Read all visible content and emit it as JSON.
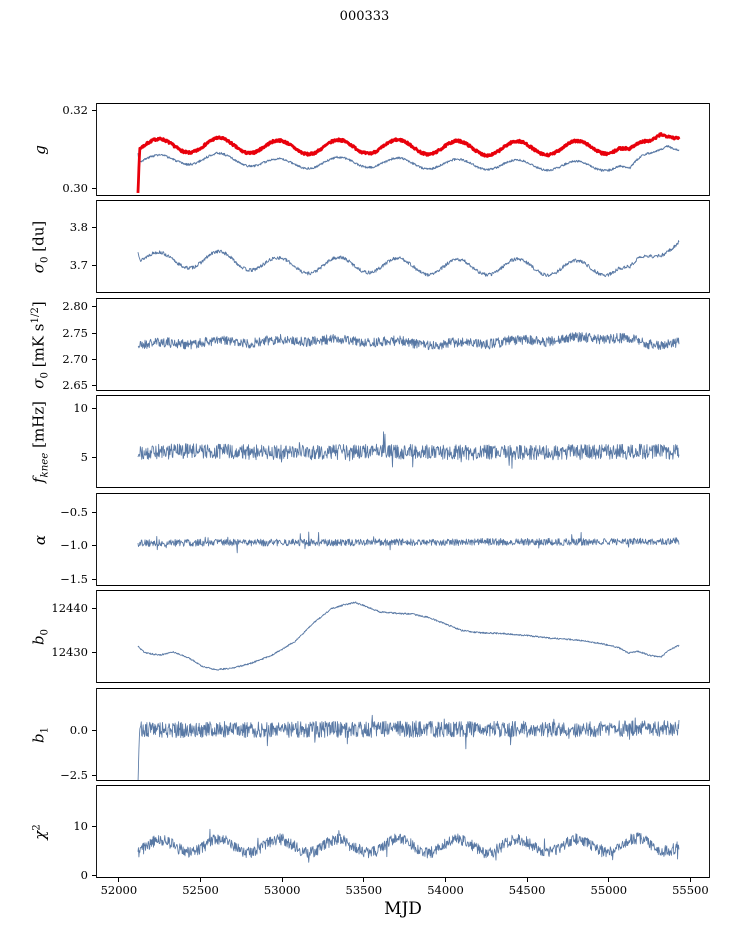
{
  "chart_data": {
    "type": "line",
    "title": "000333",
    "xlabel": "MJD",
    "xlim": [
      51860,
      55620
    ],
    "x_data_range": [
      52117,
      55430
    ],
    "grid": false,
    "legend": "none",
    "xticks": [
      {
        "v": 52000,
        "label": "52000"
      },
      {
        "v": 52500,
        "label": "52500"
      },
      {
        "v": 53000,
        "label": "53000"
      },
      {
        "v": 53500,
        "label": "53500"
      },
      {
        "v": 54000,
        "label": "54000"
      },
      {
        "v": 54500,
        "label": "54500"
      },
      {
        "v": 55000,
        "label": "55000"
      },
      {
        "v": 55500,
        "label": "55500"
      }
    ],
    "panels": [
      {
        "id": "g",
        "ylabel": [
          {
            "t": "g",
            "s": "i"
          }
        ],
        "ylim": [
          0.298,
          0.322
        ],
        "yticks": [
          {
            "v": 0.3,
            "label": "0.30"
          },
          {
            "v": 0.32,
            "label": "0.32"
          }
        ],
        "series": [
          {
            "name": "blue-series",
            "color": "#5878a4",
            "width": 1.0,
            "seed": 3,
            "noise": 0.00028,
            "osc": {
              "amp": 0.0013,
              "period": 365,
              "phase": 52159
            },
            "anchors": [
              [
                52117,
                0.3098
              ],
              [
                52126,
                0.3075
              ],
              [
                52300,
                0.3072
              ],
              [
                52600,
                0.3078
              ],
              [
                53000,
                0.3062
              ],
              [
                53400,
                0.3068
              ],
              [
                54000,
                0.3062
              ],
              [
                54600,
                0.306
              ],
              [
                54900,
                0.3055
              ],
              [
                55060,
                0.3062
              ],
              [
                55130,
                0.3042
              ],
              [
                55200,
                0.3072
              ],
              [
                55300,
                0.3105
              ],
              [
                55360,
                0.3122
              ],
              [
                55430,
                0.3102
              ]
            ]
          },
          {
            "name": "red-series",
            "color": "#e8000b",
            "width": 2.8,
            "seed": 7,
            "noise": 0.00032,
            "osc": {
              "amp": 0.0018,
              "period": 365,
              "phase": 52159
            },
            "anchors": [
              [
                52117,
                0.3003
              ],
              [
                52128,
                0.3112
              ],
              [
                52300,
                0.3108
              ],
              [
                52600,
                0.3112
              ],
              [
                53000,
                0.3105
              ],
              [
                53600,
                0.3108
              ],
              [
                54200,
                0.3103
              ],
              [
                54800,
                0.3104
              ],
              [
                55060,
                0.3108
              ],
              [
                55130,
                0.3088
              ],
              [
                55180,
                0.3098
              ],
              [
                55250,
                0.3118
              ],
              [
                55320,
                0.3155
              ],
              [
                55370,
                0.3152
              ],
              [
                55430,
                0.3133
              ]
            ]
          }
        ]
      },
      {
        "id": "sigma0-du",
        "ylabel": [
          {
            "t": "σ",
            "s": "i"
          },
          {
            "t": "0",
            "s": "ssub"
          },
          {
            "t": " [du]",
            "s": "n"
          }
        ],
        "ylim": [
          3.63,
          3.87
        ],
        "yticks": [
          {
            "v": 3.7,
            "label": "3.7"
          },
          {
            "v": 3.8,
            "label": "3.8"
          }
        ],
        "series": [
          {
            "name": "blue-series",
            "color": "#5878a4",
            "width": 0.9,
            "seed": 13,
            "noise": 0.0045,
            "osc": {
              "amp": 0.02,
              "period": 365,
              "phase": 52159
            },
            "anchors": [
              [
                52117,
                3.748
              ],
              [
                52135,
                3.722
              ],
              [
                52300,
                3.712
              ],
              [
                52600,
                3.718
              ],
              [
                53000,
                3.7
              ],
              [
                53500,
                3.703
              ],
              [
                54000,
                3.696
              ],
              [
                54500,
                3.698
              ],
              [
                54900,
                3.692
              ],
              [
                55060,
                3.7
              ],
              [
                55130,
                3.682
              ],
              [
                55200,
                3.705
              ],
              [
                55300,
                3.737
              ],
              [
                55360,
                3.757
              ],
              [
                55430,
                3.768
              ]
            ]
          }
        ]
      },
      {
        "id": "sigma0-mks",
        "ylabel": [
          {
            "t": "σ",
            "s": "i"
          },
          {
            "t": "0",
            "s": "ssub"
          },
          {
            "t": " [mK s",
            "s": "n"
          },
          {
            "t": "1/2",
            "s": "ssup"
          },
          {
            "t": "]",
            "s": "n"
          }
        ],
        "ylim": [
          2.64,
          2.817
        ],
        "yticks": [
          {
            "v": 2.65,
            "label": "2.65"
          },
          {
            "v": 2.7,
            "label": "2.70"
          },
          {
            "v": 2.75,
            "label": "2.75"
          },
          {
            "v": 2.8,
            "label": "2.80"
          }
        ],
        "series": [
          {
            "name": "blue-series",
            "color": "#5878a4",
            "width": 0.9,
            "seed": 21,
            "noise": 0.0095,
            "osc": {
              "amp": 0.003,
              "period": 365,
              "phase": 52159
            },
            "anchors": [
              [
                52117,
                2.728
              ],
              [
                52400,
                2.732
              ],
              [
                52800,
                2.734
              ],
              [
                53200,
                2.737
              ],
              [
                53600,
                2.734
              ],
              [
                54000,
                2.729
              ],
              [
                54400,
                2.734
              ],
              [
                54800,
                2.739
              ],
              [
                55060,
                2.742
              ],
              [
                55150,
                2.735
              ],
              [
                55250,
                2.728
              ],
              [
                55430,
                2.734
              ]
            ]
          }
        ]
      },
      {
        "id": "fknee",
        "ylabel": [
          {
            "t": "f",
            "s": "i"
          },
          {
            "t": "knee",
            "s": "ssubi"
          },
          {
            "t": " [mHz]",
            "s": "n"
          }
        ],
        "ylim": [
          1.84,
          11.33
        ],
        "yticks": [
          {
            "v": 5,
            "label": "5"
          },
          {
            "v": 10,
            "label": "10"
          }
        ],
        "series": [
          {
            "name": "blue-series",
            "color": "#5878a4",
            "width": 0.85,
            "seed": 29,
            "noise": 0.78,
            "spike": {
              "prob": 0.02,
              "amp": 1.7
            },
            "anchors": [
              [
                52117,
                5.45
              ],
              [
                52400,
                5.6
              ],
              [
                53000,
                5.45
              ],
              [
                53600,
                5.55
              ],
              [
                54200,
                5.45
              ],
              [
                54800,
                5.5
              ],
              [
                55430,
                5.55
              ]
            ]
          }
        ]
      },
      {
        "id": "alpha",
        "ylabel": [
          {
            "t": "α",
            "s": "i"
          }
        ],
        "ylim": [
          -1.59,
          -0.22
        ],
        "yticks": [
          {
            "v": -1.5,
            "label": "−1.5"
          },
          {
            "v": -1.0,
            "label": "−1.0"
          },
          {
            "v": -0.5,
            "label": "−0.5"
          }
        ],
        "series": [
          {
            "name": "blue-series",
            "color": "#5878a4",
            "width": 0.85,
            "seed": 37,
            "noise": 0.052,
            "spike": {
              "prob": 0.025,
              "amp": 0.13
            },
            "anchors": [
              [
                52117,
                -0.96
              ],
              [
                52600,
                -0.95
              ],
              [
                53200,
                -0.95
              ],
              [
                53800,
                -0.945
              ],
              [
                54400,
                -0.94
              ],
              [
                55000,
                -0.94
              ],
              [
                55430,
                -0.93
              ]
            ]
          }
        ]
      },
      {
        "id": "b0",
        "ylabel": [
          {
            "t": "b",
            "s": "i"
          },
          {
            "t": "0",
            "s": "ssub"
          }
        ],
        "ylim": [
          12422.8,
          12444.4
        ],
        "yticks": [
          {
            "v": 12430,
            "label": "12430"
          },
          {
            "v": 12440,
            "label": "12440"
          }
        ],
        "series": [
          {
            "name": "blue-series",
            "color": "#5878a4",
            "width": 0.9,
            "seed": 45,
            "noise": 0.17,
            "anchors": [
              [
                52117,
                12431.3
              ],
              [
                52160,
                12429.8
              ],
              [
                52250,
                12429.3
              ],
              [
                52330,
                12430.0
              ],
              [
                52420,
                12428.8
              ],
              [
                52520,
                12426.5
              ],
              [
                52600,
                12425.9
              ],
              [
                52700,
                12426.3
              ],
              [
                52820,
                12427.5
              ],
              [
                52950,
                12429.5
              ],
              [
                53080,
                12432.5
              ],
              [
                53200,
                12437.0
              ],
              [
                53300,
                12440.0
              ],
              [
                53380,
                12441.0
              ],
              [
                53450,
                12441.5
              ],
              [
                53520,
                12440.5
              ],
              [
                53600,
                12439.3
              ],
              [
                53700,
                12439.0
              ],
              [
                53800,
                12438.8
              ],
              [
                53900,
                12438.0
              ],
              [
                54000,
                12436.5
              ],
              [
                54100,
                12435.0
              ],
              [
                54200,
                12434.5
              ],
              [
                54350,
                12434.3
              ],
              [
                54500,
                12433.8
              ],
              [
                54650,
                12433.2
              ],
              [
                54800,
                12432.8
              ],
              [
                54950,
                12432.0
              ],
              [
                55060,
                12431.0
              ],
              [
                55120,
                12429.8
              ],
              [
                55180,
                12430.2
              ],
              [
                55250,
                12429.2
              ],
              [
                55320,
                12428.8
              ],
              [
                55370,
                12430.5
              ],
              [
                55430,
                12431.5
              ]
            ]
          }
        ]
      },
      {
        "id": "b1",
        "ylabel": [
          {
            "t": "b",
            "s": "i"
          },
          {
            "t": "1",
            "s": "ssub"
          }
        ],
        "ylim": [
          -2.83,
          2.33
        ],
        "yticks": [
          {
            "v": -2.5,
            "label": "−2.5"
          },
          {
            "v": 0.0,
            "label": "0.0"
          }
        ],
        "series": [
          {
            "name": "blue-series",
            "color": "#5878a4",
            "width": 0.85,
            "seed": 53,
            "noise": 0.45,
            "spike": {
              "prob": 0.03,
              "amp": 0.75
            },
            "anchors": [
              [
                52117,
                -2.62
              ],
              [
                52125,
                0.02
              ],
              [
                53000,
                0.03
              ],
              [
                54000,
                0.04
              ],
              [
                55000,
                0.05
              ],
              [
                55430,
                0.1
              ]
            ]
          }
        ]
      },
      {
        "id": "chi2",
        "ylabel": [
          {
            "t": "χ",
            "s": "i"
          },
          {
            "t": "2",
            "s": "ssup"
          }
        ],
        "ylim": [
          -0.45,
          18.25
        ],
        "yticks": [
          {
            "v": 0,
            "label": "0"
          },
          {
            "v": 10,
            "label": "10"
          }
        ],
        "series": [
          {
            "name": "blue-series",
            "color": "#5878a4",
            "width": 0.85,
            "seed": 61,
            "noise": 1.15,
            "osc": {
              "amp": 1.35,
              "period": 365,
              "phase": 52159
            },
            "spike": {
              "prob": 0.015,
              "amp": 2.6
            },
            "anchors": [
              [
                52117,
                5.6
              ],
              [
                52300,
                6.0
              ],
              [
                53000,
                6.0
              ],
              [
                54000,
                6.0
              ],
              [
                55000,
                6.0
              ],
              [
                55430,
                6.4
              ]
            ]
          }
        ]
      }
    ]
  }
}
